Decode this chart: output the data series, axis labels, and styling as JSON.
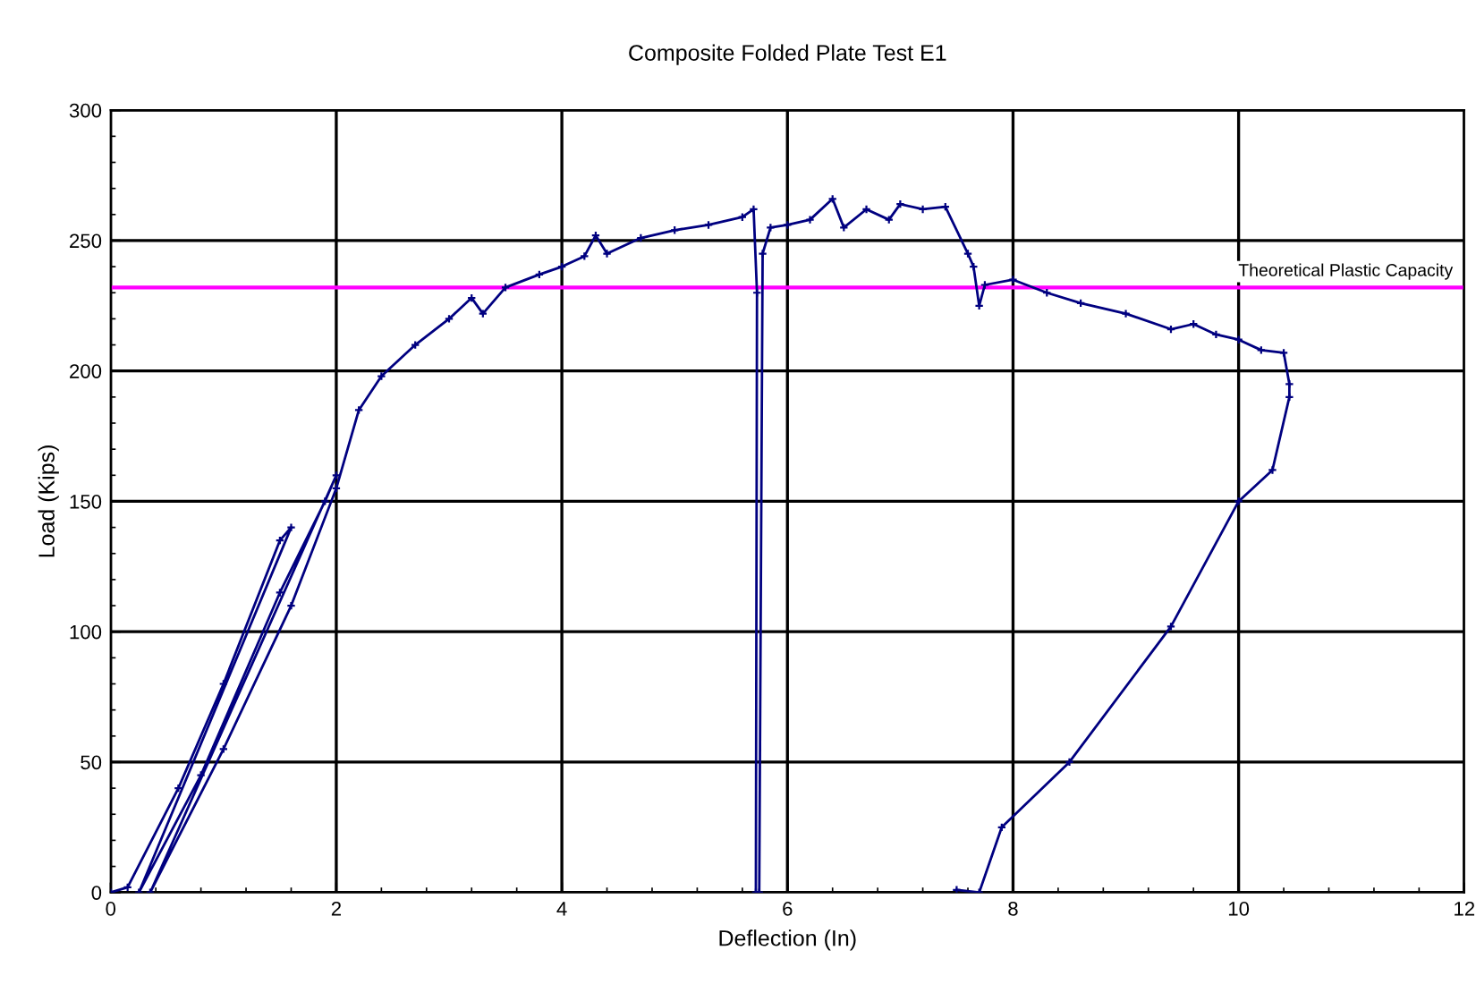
{
  "chart_data": {
    "type": "line",
    "title": "Composite Folded Plate Test E1",
    "xlabel": "Deflection (In)",
    "ylabel": "Load (Kips)",
    "xlim": [
      0,
      12
    ],
    "ylim": [
      0,
      300
    ],
    "xticks": [
      0,
      2,
      4,
      6,
      8,
      10,
      12
    ],
    "yticks": [
      0,
      50,
      100,
      150,
      200,
      250,
      300
    ],
    "grid": true,
    "marker": "cross",
    "line_style": "solid",
    "ref_lines": [
      {
        "axis": "y",
        "value": 232,
        "label": "Theoretical Plastic Capacity",
        "color": "#ff00ff"
      }
    ],
    "series": [
      {
        "color": "#000080",
        "x": [
          0,
          0.15,
          0.6,
          1.0,
          1.5,
          1.6,
          0.25,
          0.8,
          1.5,
          1.9,
          2.0,
          0.35,
          1.0,
          1.6,
          2.0,
          2.2,
          2.4,
          2.7,
          3.0,
          3.2,
          3.3,
          3.5,
          3.8,
          4.0,
          4.2,
          4.3,
          4.4,
          4.7,
          5.0,
          5.3,
          5.6,
          5.7,
          5.73,
          5.72,
          5.75,
          5.78,
          5.85,
          6.0,
          6.2,
          6.4,
          6.5,
          6.7,
          6.9,
          7.0,
          7.2,
          7.4,
          7.6,
          7.65,
          7.7,
          7.75,
          8.0,
          8.3,
          8.6,
          9.0,
          9.4,
          9.6,
          9.8,
          10.0,
          10.2,
          10.4,
          10.45,
          10.45,
          10.3,
          10.0,
          9.4,
          8.5,
          7.9,
          7.7,
          7.5
        ],
        "values": [
          0,
          2,
          40,
          80,
          135,
          140,
          0,
          45,
          115,
          150,
          160,
          0,
          55,
          110,
          155,
          185,
          198,
          210,
          220,
          228,
          222,
          232,
          237,
          240,
          244,
          252,
          245,
          251,
          254,
          256,
          259,
          262,
          230,
          0,
          0,
          245,
          255,
          256,
          258,
          266,
          255,
          262,
          258,
          264,
          262,
          263,
          245,
          240,
          225,
          233,
          235,
          230,
          226,
          222,
          216,
          218,
          214,
          212,
          208,
          207,
          195,
          190,
          162,
          150,
          102,
          50,
          25,
          0,
          1
        ]
      }
    ]
  }
}
